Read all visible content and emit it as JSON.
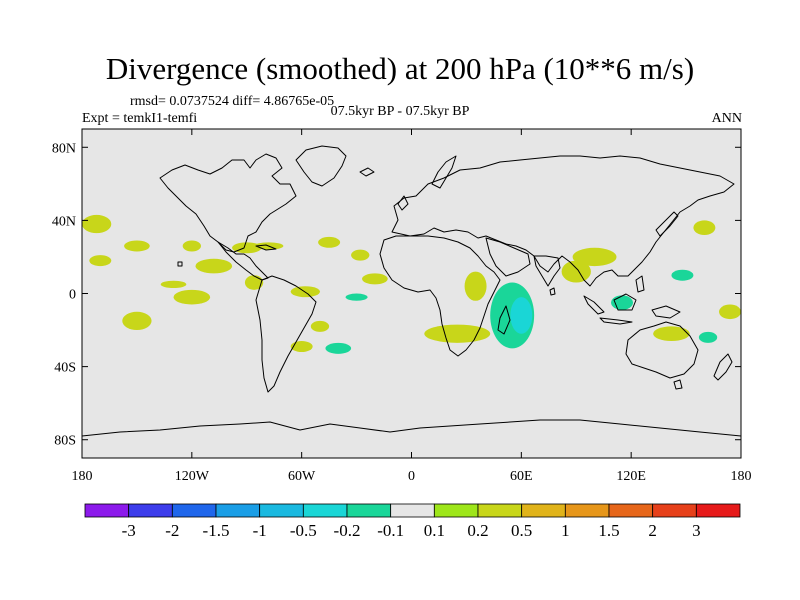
{
  "title": "Divergence (smoothed) at 200 hPa (10**6 m/s)",
  "stats": "rmsd= 0.0737524 diff= 4.86765e-05",
  "expt": "Expt = temkI1-temfi",
  "period": "07.5kyr BP - 07.5kyr BP",
  "season": "ANN",
  "map": {
    "background": "#e6e6e6",
    "lat_ticks": [
      {
        "lat": 80,
        "label": "80N"
      },
      {
        "lat": 40,
        "label": "40N"
      },
      {
        "lat": 0,
        "label": "0"
      },
      {
        "lat": -40,
        "label": "40S"
      },
      {
        "lat": -80,
        "label": "80S"
      }
    ],
    "lon_ticks": [
      {
        "lon": -180,
        "label": "180"
      },
      {
        "lon": -120,
        "label": "120W"
      },
      {
        "lon": -60,
        "label": "60W"
      },
      {
        "lon": 0,
        "label": "0"
      },
      {
        "lon": 60,
        "label": "60E"
      },
      {
        "lon": 120,
        "label": "120E"
      },
      {
        "lon": 180,
        "label": "180"
      }
    ]
  },
  "colorbar": {
    "colors": [
      "#8c1aeb",
      "#3d3deb",
      "#1f66eb",
      "#1a9ee6",
      "#1ab9e0",
      "#1ad6d6",
      "#1ad699",
      "#e6e6e6",
      "#9ee61a",
      "#c8d61a",
      "#e0b31a",
      "#e6961a",
      "#e6661a",
      "#e6401a",
      "#e61a1a"
    ],
    "labels": [
      "-3",
      "-2",
      "-1.5",
      "-1",
      "-0.5",
      "-0.2",
      "-0.1",
      "0.1",
      "0.2",
      "0.5",
      "1",
      "1.5",
      "2",
      "3"
    ]
  },
  "chart_data": {
    "type": "heatmap",
    "title": "Divergence (smoothed) at 200 hPa (10**6 m/s)",
    "x_range": [
      -180,
      180
    ],
    "y_range": [
      -90,
      90
    ],
    "features": [
      {
        "lon": -172,
        "lat": 38,
        "rlon": 8,
        "rlat": 5,
        "level": 0.2
      },
      {
        "lon": -170,
        "lat": 18,
        "rlon": 6,
        "rlat": 3,
        "level": 0.2
      },
      {
        "lon": -150,
        "lat": 26,
        "rlon": 7,
        "rlat": 3,
        "level": 0.2
      },
      {
        "lon": -150,
        "lat": -15,
        "rlon": 8,
        "rlat": 5,
        "level": 0.2
      },
      {
        "lon": -120,
        "lat": 26,
        "rlon": 5,
        "rlat": 3,
        "level": 0.2
      },
      {
        "lon": -130,
        "lat": 5,
        "rlon": 7,
        "rlat": 2,
        "level": 0.2
      },
      {
        "lon": -120,
        "lat": -2,
        "rlon": 10,
        "rlat": 4,
        "level": 0.2
      },
      {
        "lon": -108,
        "lat": 15,
        "rlon": 10,
        "rlat": 4,
        "level": 0.2
      },
      {
        "lon": -90,
        "lat": 25,
        "rlon": 8,
        "rlat": 3,
        "level": 0.2
      },
      {
        "lon": -86,
        "lat": 6,
        "rlon": 5,
        "rlat": 4,
        "level": 0.2
      },
      {
        "lon": -58,
        "lat": 1,
        "rlon": 8,
        "rlat": 3,
        "level": 0.2
      },
      {
        "lon": -50,
        "lat": -18,
        "rlon": 5,
        "rlat": 3,
        "level": 0.2
      },
      {
        "lon": -60,
        "lat": -29,
        "rlon": 6,
        "rlat": 3,
        "level": 0.2
      },
      {
        "lon": -78,
        "lat": 26,
        "rlon": 8,
        "rlat": 2,
        "level": 0.2
      },
      {
        "lon": -45,
        "lat": 28,
        "rlon": 6,
        "rlat": 3,
        "level": 0.2
      },
      {
        "lon": -28,
        "lat": 21,
        "rlon": 5,
        "rlat": 3,
        "level": 0.2
      },
      {
        "lon": -20,
        "lat": 8,
        "rlon": 7,
        "rlat": 3,
        "level": 0.2
      },
      {
        "lon": -30,
        "lat": -2,
        "rlon": 6,
        "rlat": 2,
        "level": -0.2
      },
      {
        "lon": -40,
        "lat": -30,
        "rlon": 7,
        "rlat": 3,
        "level": -0.2
      },
      {
        "lon": 25,
        "lat": -22,
        "rlon": 18,
        "rlat": 5,
        "level": 0.2
      },
      {
        "lon": 35,
        "lat": 4,
        "rlon": 6,
        "rlat": 8,
        "level": 0.2
      },
      {
        "lon": 55,
        "lat": -12,
        "rlon": 12,
        "rlat": 18,
        "level": -0.2
      },
      {
        "lon": 60,
        "lat": -12,
        "rlon": 6,
        "rlat": 10,
        "level": -0.5
      },
      {
        "lon": 90,
        "lat": 12,
        "rlon": 8,
        "rlat": 6,
        "level": 0.2
      },
      {
        "lon": 100,
        "lat": 20,
        "rlon": 12,
        "rlat": 5,
        "level": 0.2
      },
      {
        "lon": 115,
        "lat": -5,
        "rlon": 6,
        "rlat": 4,
        "level": -0.2
      },
      {
        "lon": 142,
        "lat": -22,
        "rlon": 10,
        "rlat": 4,
        "level": 0.2
      },
      {
        "lon": 148,
        "lat": 10,
        "rlon": 6,
        "rlat": 3,
        "level": -0.2
      },
      {
        "lon": 160,
        "lat": 36,
        "rlon": 6,
        "rlat": 4,
        "level": 0.2
      },
      {
        "lon": 174,
        "lat": -10,
        "rlon": 6,
        "rlat": 4,
        "level": 0.2
      },
      {
        "lon": 162,
        "lat": -24,
        "rlon": 5,
        "rlat": 3,
        "level": -0.2
      }
    ]
  }
}
